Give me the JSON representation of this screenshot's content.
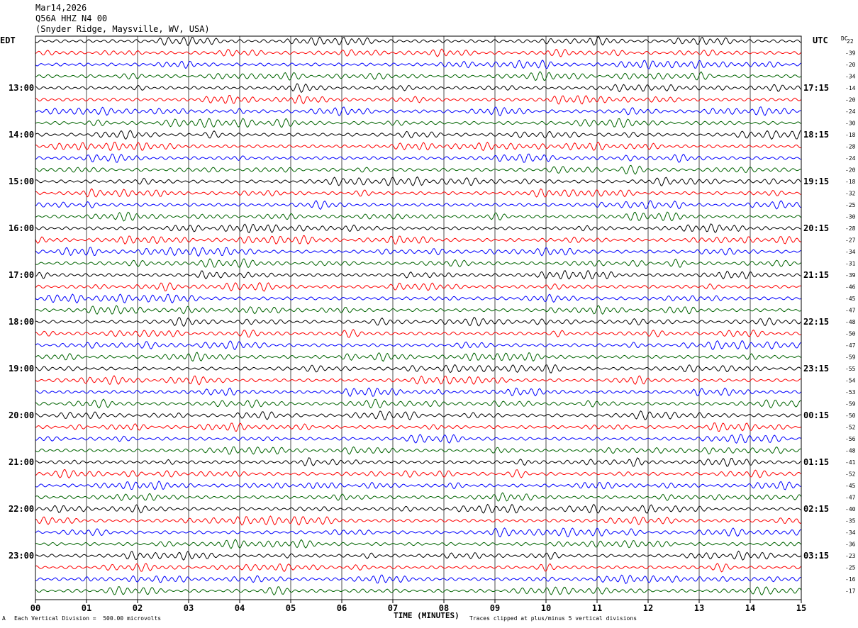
{
  "header": {
    "date": "Mar14,2026",
    "station": "Q56A HHZ N4 00",
    "location": "(Snyder Ridge, Maysville, WV, USA)"
  },
  "left_tz": "EDT",
  "right_tz": "UTC",
  "dc_label": "DC",
  "footer": {
    "scale": "Each Vertical Division =  500.00 microvolts",
    "clip": "Traces clipped at plus/minus 5 vertical divisions",
    "mark": "A"
  },
  "chart_data": {
    "type": "line",
    "xlabel": "TIME (MINUTES)",
    "xlim": [
      0,
      15
    ],
    "x_ticks": [
      "00",
      "01",
      "02",
      "03",
      "04",
      "05",
      "06",
      "07",
      "08",
      "09",
      "10",
      "11",
      "12",
      "13",
      "14",
      "15"
    ],
    "trace_colors": [
      "#000000",
      "#ff0000",
      "#0000ff",
      "#006400"
    ],
    "traces_per_hour": 4,
    "left_time_labels": [
      "13:00",
      "14:00",
      "15:00",
      "16:00",
      "17:00",
      "18:00",
      "19:00",
      "20:00",
      "21:00",
      "22:00",
      "23:00"
    ],
    "right_time_labels": [
      "17:15",
      "18:15",
      "19:15",
      "20:15",
      "21:15",
      "22:15",
      "23:15",
      "00:15",
      "01:15",
      "02:15",
      "03:15"
    ],
    "dc_offsets": [
      22,
      -39,
      -20,
      -34,
      -14,
      -20,
      -24,
      -30,
      -18,
      -28,
      -24,
      -20,
      -18,
      -32,
      -25,
      -30,
      -28,
      -27,
      -34,
      -31,
      -39,
      -46,
      -45,
      -47,
      -48,
      -50,
      -47,
      -59,
      -55,
      -54,
      -53,
      -59,
      -50,
      -52,
      -56,
      -48,
      -41,
      -52,
      -45,
      -47,
      -40,
      -35,
      -34,
      -36,
      -23,
      -25,
      -16,
      -17
    ]
  }
}
